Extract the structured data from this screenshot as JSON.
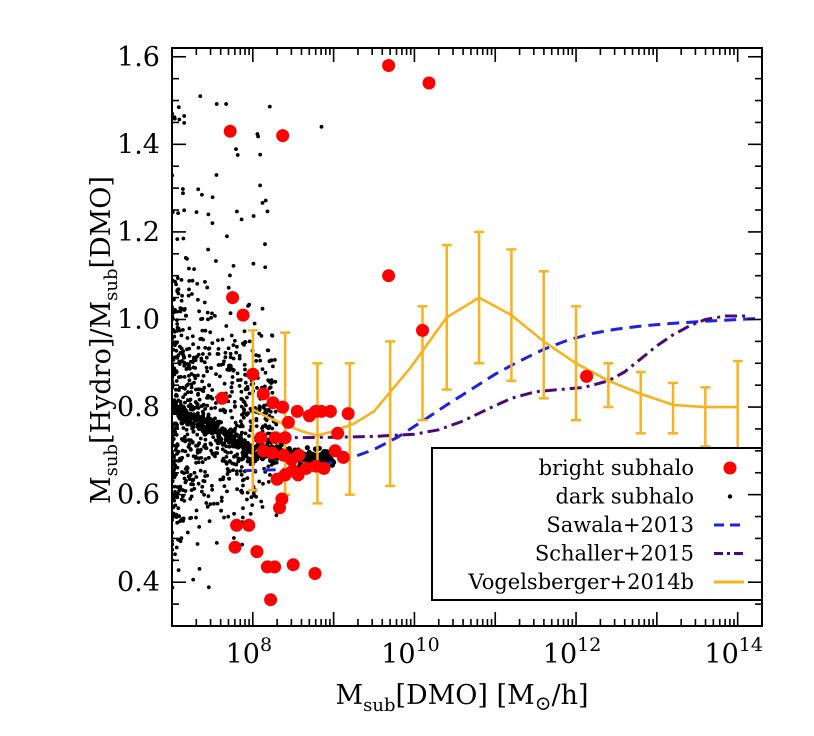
{
  "chart_data": {
    "type": "scatter",
    "xscale": "log",
    "xlim": [
      10000000,
      200000000000000
    ],
    "ylim": [
      0.3,
      1.62
    ],
    "x_ticks": [
      {
        "value": 100000000,
        "base": "10",
        "exp": "8"
      },
      {
        "value": 10000000000,
        "base": "10",
        "exp": "10"
      },
      {
        "value": 1000000000000,
        "base": "10",
        "exp": "12"
      },
      {
        "value": 100000000000000,
        "base": "10",
        "exp": "14"
      }
    ],
    "y_ticks": [
      {
        "value": 0.4,
        "label": "0.4"
      },
      {
        "value": 0.6,
        "label": "0.6"
      },
      {
        "value": 0.8,
        "label": "0.8"
      },
      {
        "value": 1.0,
        "label": "1.0"
      },
      {
        "value": 1.2,
        "label": "1.2"
      },
      {
        "value": 1.4,
        "label": "1.4"
      },
      {
        "value": 1.6,
        "label": "1.6"
      }
    ],
    "xlabel": {
      "main": "M",
      "sub": "sub",
      "rest": "[DMO] [M",
      "sun": "⊙",
      "end": "/h]"
    },
    "ylabel": {
      "m1": "M",
      "s1": "sub",
      "t1": "[Hydro]/M",
      "s2": "sub",
      "t2": "[DMO]"
    },
    "legend_position": "bottom-right",
    "legend": [
      {
        "label": "bright subhalo",
        "style": "red-dot"
      },
      {
        "label": "dark subhalo",
        "style": "black-dot"
      },
      {
        "label": "Sawala+2013",
        "style": "blue-dash"
      },
      {
        "label": "Schaller+2015",
        "style": "purple-dashdot"
      },
      {
        "label": "Vogelsberger+2014b",
        "style": "orange-solid"
      }
    ],
    "colors": {
      "bright": "#ff0000",
      "dark": "#000000",
      "sawala": "#1f22e0",
      "schaller": "#4b0a7a",
      "vogelsberger": "#f7b21e"
    },
    "series": [
      {
        "name": "bright subhalo",
        "log10_x_y": [
          [
            7.72,
            1.43
          ],
          [
            8.37,
            1.42
          ],
          [
            9.68,
            1.58
          ],
          [
            10.18,
            1.54
          ],
          [
            7.75,
            1.05
          ],
          [
            9.68,
            1.1
          ],
          [
            10.1,
            0.975
          ],
          [
            7.88,
            1.01
          ],
          [
            8.0,
            0.875
          ],
          [
            7.62,
            0.82
          ],
          [
            8.13,
            0.83
          ],
          [
            8.25,
            0.81
          ],
          [
            8.37,
            0.8
          ],
          [
            8.44,
            0.765
          ],
          [
            8.55,
            0.79
          ],
          [
            8.7,
            0.78
          ],
          [
            8.78,
            0.79
          ],
          [
            8.85,
            0.79
          ],
          [
            8.96,
            0.79
          ],
          [
            9.18,
            0.785
          ],
          [
            9.05,
            0.74
          ],
          [
            8.28,
            0.73
          ],
          [
            8.4,
            0.73
          ],
          [
            8.1,
            0.73
          ],
          [
            8.13,
            0.7
          ],
          [
            8.24,
            0.695
          ],
          [
            8.38,
            0.69
          ],
          [
            8.48,
            0.68
          ],
          [
            8.57,
            0.69
          ],
          [
            8.66,
            0.66
          ],
          [
            8.78,
            0.665
          ],
          [
            8.88,
            0.66
          ],
          [
            9.02,
            0.7
          ],
          [
            9.12,
            0.685
          ],
          [
            8.3,
            0.635
          ],
          [
            8.4,
            0.645
          ],
          [
            8.5,
            0.655
          ],
          [
            8.56,
            0.645
          ],
          [
            8.36,
            0.59
          ],
          [
            8.33,
            0.57
          ],
          [
            7.8,
            0.53
          ],
          [
            7.95,
            0.53
          ],
          [
            7.78,
            0.48
          ],
          [
            8.05,
            0.47
          ],
          [
            8.18,
            0.435
          ],
          [
            8.27,
            0.435
          ],
          [
            8.5,
            0.44
          ],
          [
            8.77,
            0.42
          ],
          [
            8.22,
            0.36
          ],
          [
            12.13,
            0.87
          ]
        ]
      },
      {
        "name": "Sawala+2013",
        "log10_x_y": [
          [
            7.9,
            0.655
          ],
          [
            8.3,
            0.657
          ],
          [
            8.6,
            0.662
          ],
          [
            8.9,
            0.67
          ],
          [
            9.2,
            0.683
          ],
          [
            9.5,
            0.703
          ],
          [
            9.8,
            0.732
          ],
          [
            10.1,
            0.768
          ],
          [
            10.4,
            0.805
          ],
          [
            10.7,
            0.84
          ],
          [
            11.0,
            0.875
          ],
          [
            11.3,
            0.905
          ],
          [
            11.6,
            0.932
          ],
          [
            11.9,
            0.953
          ],
          [
            12.2,
            0.968
          ],
          [
            12.5,
            0.978
          ],
          [
            12.8,
            0.985
          ],
          [
            13.1,
            0.99
          ],
          [
            13.5,
            0.995
          ],
          [
            14.0,
            1.0
          ],
          [
            14.3,
            1.003
          ]
        ]
      },
      {
        "name": "Schaller+2015",
        "log10_x_y": [
          [
            8.0,
            0.73
          ],
          [
            8.5,
            0.73
          ],
          [
            9.0,
            0.731
          ],
          [
            9.5,
            0.733
          ],
          [
            10.0,
            0.738
          ],
          [
            10.3,
            0.748
          ],
          [
            10.6,
            0.768
          ],
          [
            10.9,
            0.795
          ],
          [
            11.2,
            0.82
          ],
          [
            11.5,
            0.835
          ],
          [
            11.8,
            0.84
          ],
          [
            12.1,
            0.845
          ],
          [
            12.4,
            0.86
          ],
          [
            12.6,
            0.88
          ],
          [
            12.8,
            0.91
          ],
          [
            13.0,
            0.94
          ],
          [
            13.2,
            0.965
          ],
          [
            13.4,
            0.985
          ],
          [
            13.6,
            1.0
          ],
          [
            13.85,
            1.008
          ],
          [
            14.1,
            1.008
          ]
        ]
      },
      {
        "name": "Vogelsberger+2014b",
        "log10_x_y": [
          [
            8.0,
            0.795
          ],
          [
            8.2,
            0.775
          ],
          [
            8.4,
            0.76
          ],
          [
            8.6,
            0.745
          ],
          [
            8.8,
            0.735
          ],
          [
            9.0,
            0.745
          ],
          [
            9.25,
            0.762
          ],
          [
            9.5,
            0.79
          ],
          [
            9.95,
            0.89
          ],
          [
            10.4,
            1.005
          ],
          [
            10.8,
            1.05
          ],
          [
            11.2,
            1.01
          ],
          [
            11.6,
            0.95
          ],
          [
            12.0,
            0.9
          ],
          [
            12.4,
            0.86
          ],
          [
            12.8,
            0.83
          ],
          [
            13.2,
            0.805
          ],
          [
            13.6,
            0.8
          ],
          [
            14.0,
            0.8
          ]
        ],
        "errorbars": [
          [
            8.0,
            0.61,
            0.975
          ],
          [
            8.4,
            0.6,
            0.97
          ],
          [
            8.8,
            0.58,
            0.9
          ],
          [
            9.2,
            0.6,
            0.9
          ],
          [
            9.7,
            0.62,
            0.95
          ],
          [
            10.1,
            0.77,
            1.03
          ],
          [
            10.4,
            0.84,
            1.17
          ],
          [
            10.8,
            0.9,
            1.2
          ],
          [
            11.2,
            0.86,
            1.16
          ],
          [
            11.6,
            0.82,
            1.11
          ],
          [
            12.0,
            0.77,
            1.03
          ],
          [
            12.4,
            0.8,
            0.9
          ],
          [
            12.8,
            0.74,
            0.88
          ],
          [
            13.2,
            0.74,
            0.855
          ],
          [
            13.6,
            0.71,
            0.845
          ],
          [
            14.0,
            0.69,
            0.905
          ]
        ]
      }
    ]
  }
}
